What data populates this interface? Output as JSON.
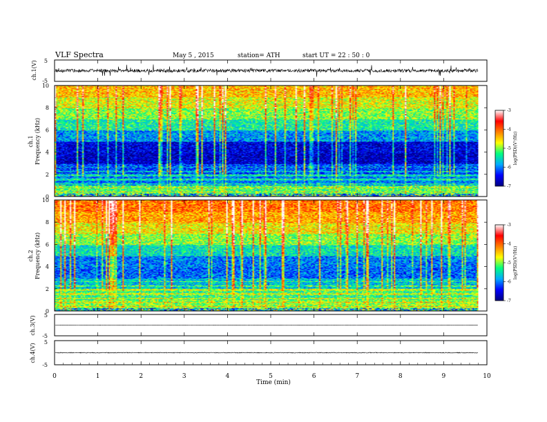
{
  "header": {
    "title": "VLF  Spectra",
    "date": "May 5  , 2015",
    "station": "station= ATH",
    "start": "start  UT  =    22 : 50 : 0"
  },
  "xaxis": {
    "label": "Time  (min)",
    "range": [
      0,
      10
    ],
    "ticks": [
      "0",
      "1",
      "2",
      "3",
      "4",
      "5",
      "6",
      "7",
      "8",
      "9",
      "10"
    ]
  },
  "panels": {
    "ch1_wave": {
      "ylabel": "ch.1(V)",
      "ticks": [
        "5",
        "-5"
      ],
      "range": [
        -5,
        5
      ]
    },
    "ch1_spec": {
      "ylabel": "ch.1",
      "ylabel2": "Frequency  (kHz)",
      "ticks": [
        "10",
        "8",
        "6",
        "4",
        "2",
        "0"
      ],
      "range_khz": [
        0,
        10
      ]
    },
    "ch2_spec": {
      "ylabel": "ch.2",
      "ylabel2": "Frequency  (kHz)",
      "ticks": [
        "10",
        "8",
        "6",
        "4",
        "2",
        "0"
      ],
      "range_khz": [
        0,
        10
      ]
    },
    "ch3_wave": {
      "ylabel": "ch.3(V)",
      "ticks": [
        "5",
        "-5"
      ],
      "range": [
        -5,
        5
      ]
    },
    "ch4_wave": {
      "ylabel": "ch.4(V)",
      "ticks": [
        "5",
        "-5"
      ],
      "range": [
        -5,
        5
      ]
    }
  },
  "colorbar": {
    "label": "log(PSD)(V²/Hz)",
    "ticks": [
      "-3",
      "-4",
      "-5",
      "-6",
      "-7"
    ],
    "range": [
      -7,
      -3
    ],
    "colors": [
      "#000080",
      "#0000ff",
      "#00aaff",
      "#00ff80",
      "#ffff00",
      "#ff8000",
      "#ff0000",
      "#ffffff"
    ]
  },
  "chart_data": {
    "type": "heatmap",
    "title": "VLF  Spectra",
    "xlabel": "Time  (min)",
    "xlim": [
      0,
      10
    ],
    "data_end_min": 9.8,
    "channels": [
      {
        "name": "ch.1",
        "ylabel": "Frequency  (kHz)",
        "ylim": [
          0,
          10
        ],
        "psd_profile": [
          {
            "freq_khz": 0.5,
            "log_psd": -5.2
          },
          {
            "freq_khz": 1.5,
            "log_psd": -6.0
          },
          {
            "freq_khz": 2.5,
            "log_psd": -6.2
          },
          {
            "freq_khz": 3.5,
            "log_psd": -6.7
          },
          {
            "freq_khz": 4.5,
            "log_psd": -6.6
          },
          {
            "freq_khz": 5.5,
            "log_psd": -5.9
          },
          {
            "freq_khz": 6.5,
            "log_psd": -5.4
          },
          {
            "freq_khz": 7.5,
            "log_psd": -5.0
          },
          {
            "freq_khz": 8.5,
            "log_psd": -4.7
          },
          {
            "freq_khz": 9.5,
            "log_psd": -4.4
          }
        ]
      },
      {
        "name": "ch.2",
        "ylabel": "Frequency  (kHz)",
        "ylim": [
          0,
          10
        ],
        "psd_profile": [
          {
            "freq_khz": 0.5,
            "log_psd": -5.0
          },
          {
            "freq_khz": 1.5,
            "log_psd": -5.3
          },
          {
            "freq_khz": 2.5,
            "log_psd": -5.7
          },
          {
            "freq_khz": 3.5,
            "log_psd": -6.1
          },
          {
            "freq_khz": 4.5,
            "log_psd": -6.0
          },
          {
            "freq_khz": 5.5,
            "log_psd": -5.5
          },
          {
            "freq_khz": 6.5,
            "log_psd": -5.0
          },
          {
            "freq_khz": 7.5,
            "log_psd": -4.6
          },
          {
            "freq_khz": 8.5,
            "log_psd": -4.3
          },
          {
            "freq_khz": 9.5,
            "log_psd": -4.1
          }
        ]
      }
    ],
    "waveforms": [
      {
        "name": "ch.1(V)",
        "ylim": [
          -5,
          5
        ],
        "baseline_v": 0,
        "noise_amplitude_v": 1.5
      },
      {
        "name": "ch.3(V)",
        "ylim": [
          -5,
          5
        ],
        "baseline_v": 0,
        "noise_amplitude_v": 0.1
      },
      {
        "name": "ch.4(V)",
        "ylim": [
          -5,
          5
        ],
        "baseline_v": 0,
        "noise_amplitude_v": 0.3
      }
    ]
  }
}
